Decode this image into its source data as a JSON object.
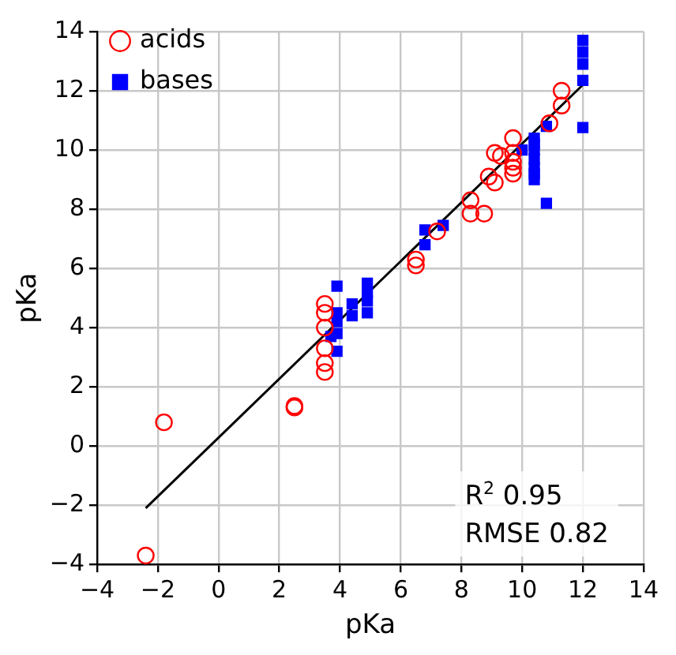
{
  "chart_data": {
    "type": "scatter",
    "xlabel": "pKa",
    "ylabel": "pKa",
    "xlim": [
      -4,
      14
    ],
    "ylim": [
      -4,
      14
    ],
    "xticks": [
      -4,
      -2,
      0,
      2,
      4,
      6,
      8,
      10,
      12,
      14
    ],
    "yticks": [
      -4,
      -2,
      0,
      2,
      4,
      6,
      8,
      10,
      12,
      14
    ],
    "grid": true,
    "legend": "top left",
    "annotations": [
      "R$^{2}$ 0.95",
      "RMSE 0.82"
    ],
    "series": [
      {
        "name": "acids",
        "color": "#ff0000",
        "marker": "circle",
        "x": [
          -2.4,
          -1.8,
          2.5,
          2.5,
          3.5,
          3.5,
          3.5,
          3.5,
          3.5,
          3.5,
          6.5,
          6.5,
          7.2,
          8.3,
          8.3,
          8.75,
          8.9,
          9.1,
          9.1,
          9.3,
          9.7,
          9.7,
          9.7,
          9.7,
          9.7,
          10.9,
          11.3,
          11.3
        ],
        "values": [
          -3.7,
          0.8,
          1.3,
          1.35,
          4.8,
          4.5,
          4.0,
          3.3,
          2.8,
          2.5,
          6.3,
          6.1,
          7.25,
          8.3,
          7.85,
          7.85,
          9.1,
          8.9,
          9.9,
          9.8,
          10.4,
          9.9,
          9.6,
          9.4,
          9.2,
          10.9,
          11.5,
          12.0
        ]
      },
      {
        "name": "bases",
        "color": "#0000ff",
        "marker": "square",
        "x": [
          3.7,
          3.9,
          3.9,
          3.9,
          3.9,
          3.9,
          4.4,
          4.4,
          4.9,
          4.9,
          4.9,
          4.9,
          6.8,
          6.8,
          7.4,
          10.0,
          10.4,
          10.4,
          10.4,
          10.4,
          10.4,
          10.4,
          10.4,
          10.8,
          10.8,
          12,
          12,
          12,
          12,
          12
        ],
        "values": [
          3.7,
          5.4,
          4.5,
          4.2,
          3.8,
          3.2,
          4.8,
          4.4,
          5.5,
          5.2,
          4.9,
          4.5,
          7.3,
          6.8,
          7.45,
          10.0,
          10.4,
          10.2,
          10.0,
          9.7,
          9.4,
          9.2,
          9.0,
          10.8,
          8.2,
          13.7,
          13.3,
          12.9,
          12.35,
          10.76
        ]
      },
      {
        "type": "line",
        "color": "#000000",
        "marker": "none",
        "x": [
          -2.4,
          12
        ],
        "values": [
          -2.1,
          12.2
        ]
      }
    ]
  }
}
